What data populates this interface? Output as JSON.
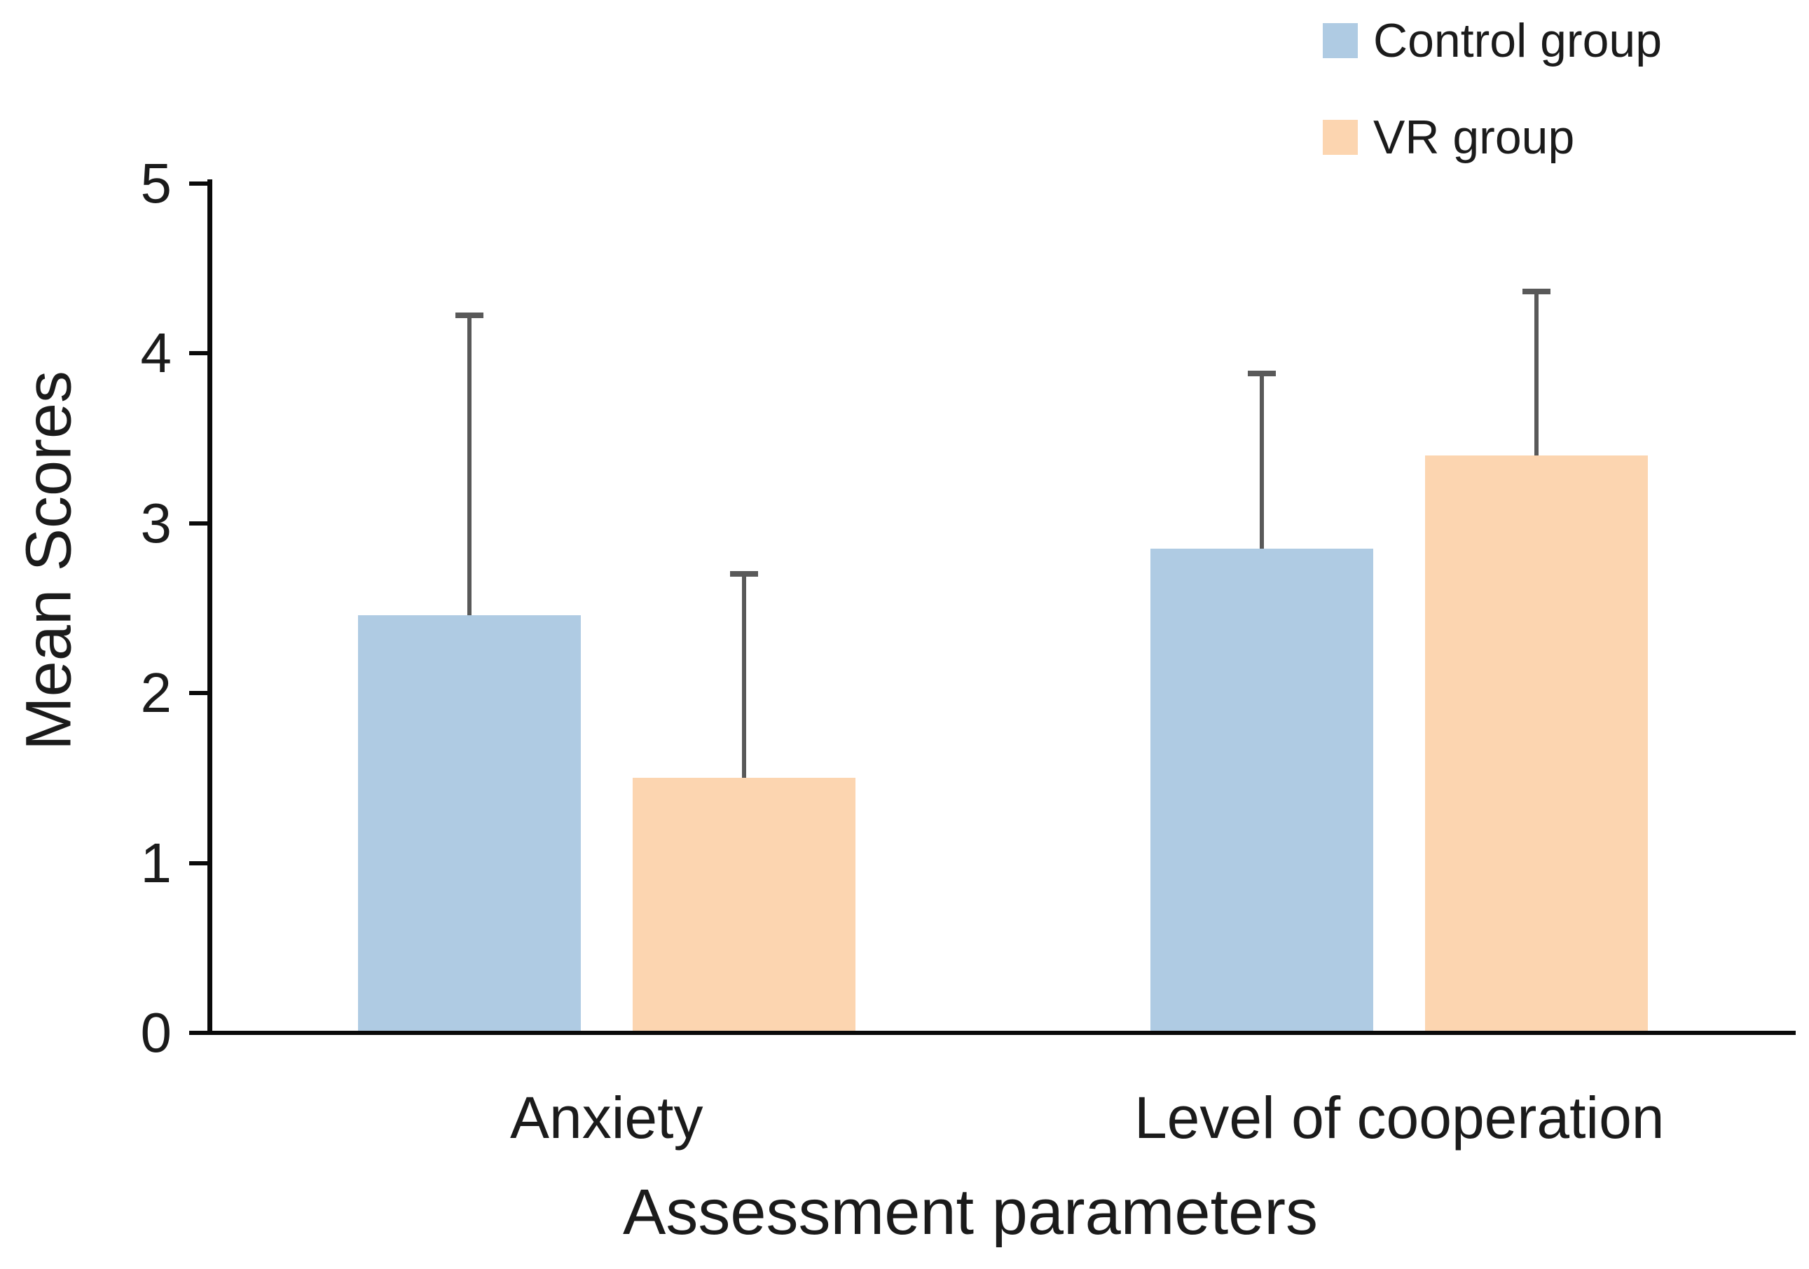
{
  "figure": {
    "background": "#ffffff"
  },
  "chart_data": {
    "type": "bar",
    "title": "",
    "xlabel": "Assessment parameters",
    "ylabel": "Mean Scores",
    "categories": [
      "Anxiety",
      "Level of cooperation"
    ],
    "series": [
      {
        "name": "Control group",
        "color": "#AFCBE3",
        "values": [
          2.46,
          2.85
        ],
        "errors_upper": [
          1.78,
          1.05
        ]
      },
      {
        "name": "VR group",
        "color": "#FCD5B0",
        "values": [
          1.5,
          3.4
        ],
        "errors_upper": [
          1.22,
          0.98
        ]
      }
    ],
    "ylim": [
      0,
      5
    ],
    "yticks": [
      0,
      1,
      2,
      3,
      4,
      5
    ],
    "grid": false,
    "legend_position": "top-right",
    "bar_orientation": "vertical",
    "error_bar_color": "#595959",
    "axis_color": "#0a0a0a",
    "text_color": "#1b1b1b"
  }
}
